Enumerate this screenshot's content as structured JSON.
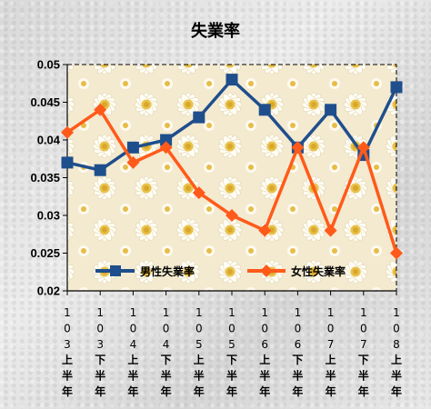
{
  "chart_data": {
    "type": "line",
    "title": "失業率",
    "categories": [
      "103上半年",
      "103下半年",
      "104上半年",
      "104下半年",
      "105上半年",
      "105下半年",
      "106上半年",
      "106下半年",
      "107上半年",
      "107下半年",
      "108上半年"
    ],
    "series": [
      {
        "name": "男性失業率",
        "color": "#1f4e8c",
        "marker": "square",
        "values": [
          0.037,
          0.036,
          0.039,
          0.04,
          0.043,
          0.048,
          0.044,
          0.039,
          0.044,
          0.038,
          0.047
        ]
      },
      {
        "name": "女性失業率",
        "color": "#ff5a1a",
        "marker": "diamond",
        "values": [
          0.041,
          0.044,
          0.037,
          0.039,
          0.033,
          0.03,
          0.028,
          0.039,
          0.028,
          0.039,
          0.025
        ]
      }
    ],
    "ylim": [
      0.02,
      0.05
    ],
    "yticks": [
      "0.02",
      "0.025",
      "0.03",
      "0.035",
      "0.04",
      "0.045",
      "0.05"
    ],
    "xlabel": "",
    "ylabel": "",
    "grid": false,
    "legend": "bottom-inside",
    "plot_background": "daisy-pattern"
  }
}
